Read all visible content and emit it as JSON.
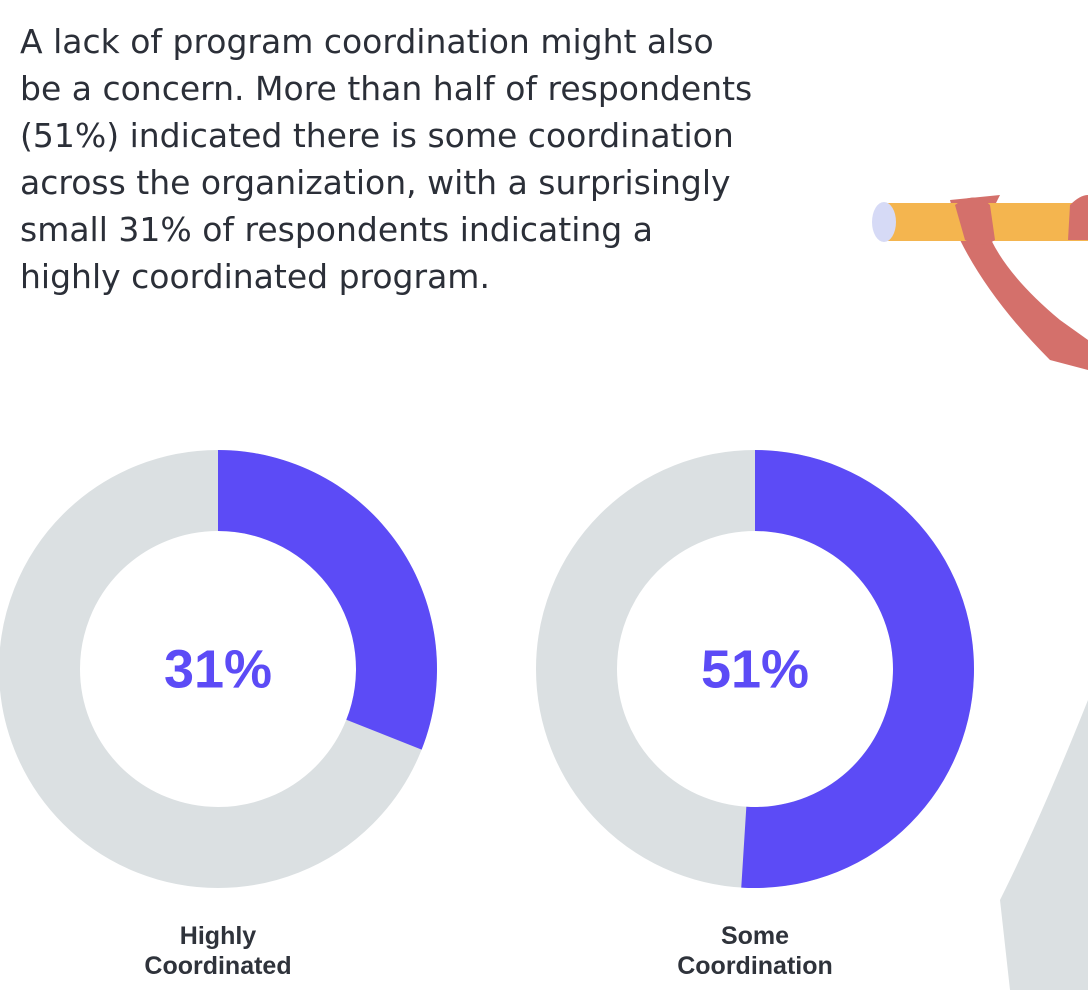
{
  "paragraph": "A lack of program coordination might also be a concern. More than half of respondents (51%) indicated there is some coordination across the organization, with a surprisingly small 31% of respondents indicating a highly coordinated program.",
  "chart_data": [
    {
      "type": "donut",
      "categories": [
        "Highly Coordinated"
      ],
      "values": [
        31
      ],
      "value_labels": [
        "31%"
      ],
      "color": "#5c4bf6",
      "track_color": "#dbe0e2"
    },
    {
      "type": "donut",
      "categories": [
        "Some Coordination"
      ],
      "values": [
        51
      ],
      "value_labels": [
        "51%"
      ],
      "color": "#5c4bf6",
      "track_color": "#dbe0e2"
    }
  ]
}
